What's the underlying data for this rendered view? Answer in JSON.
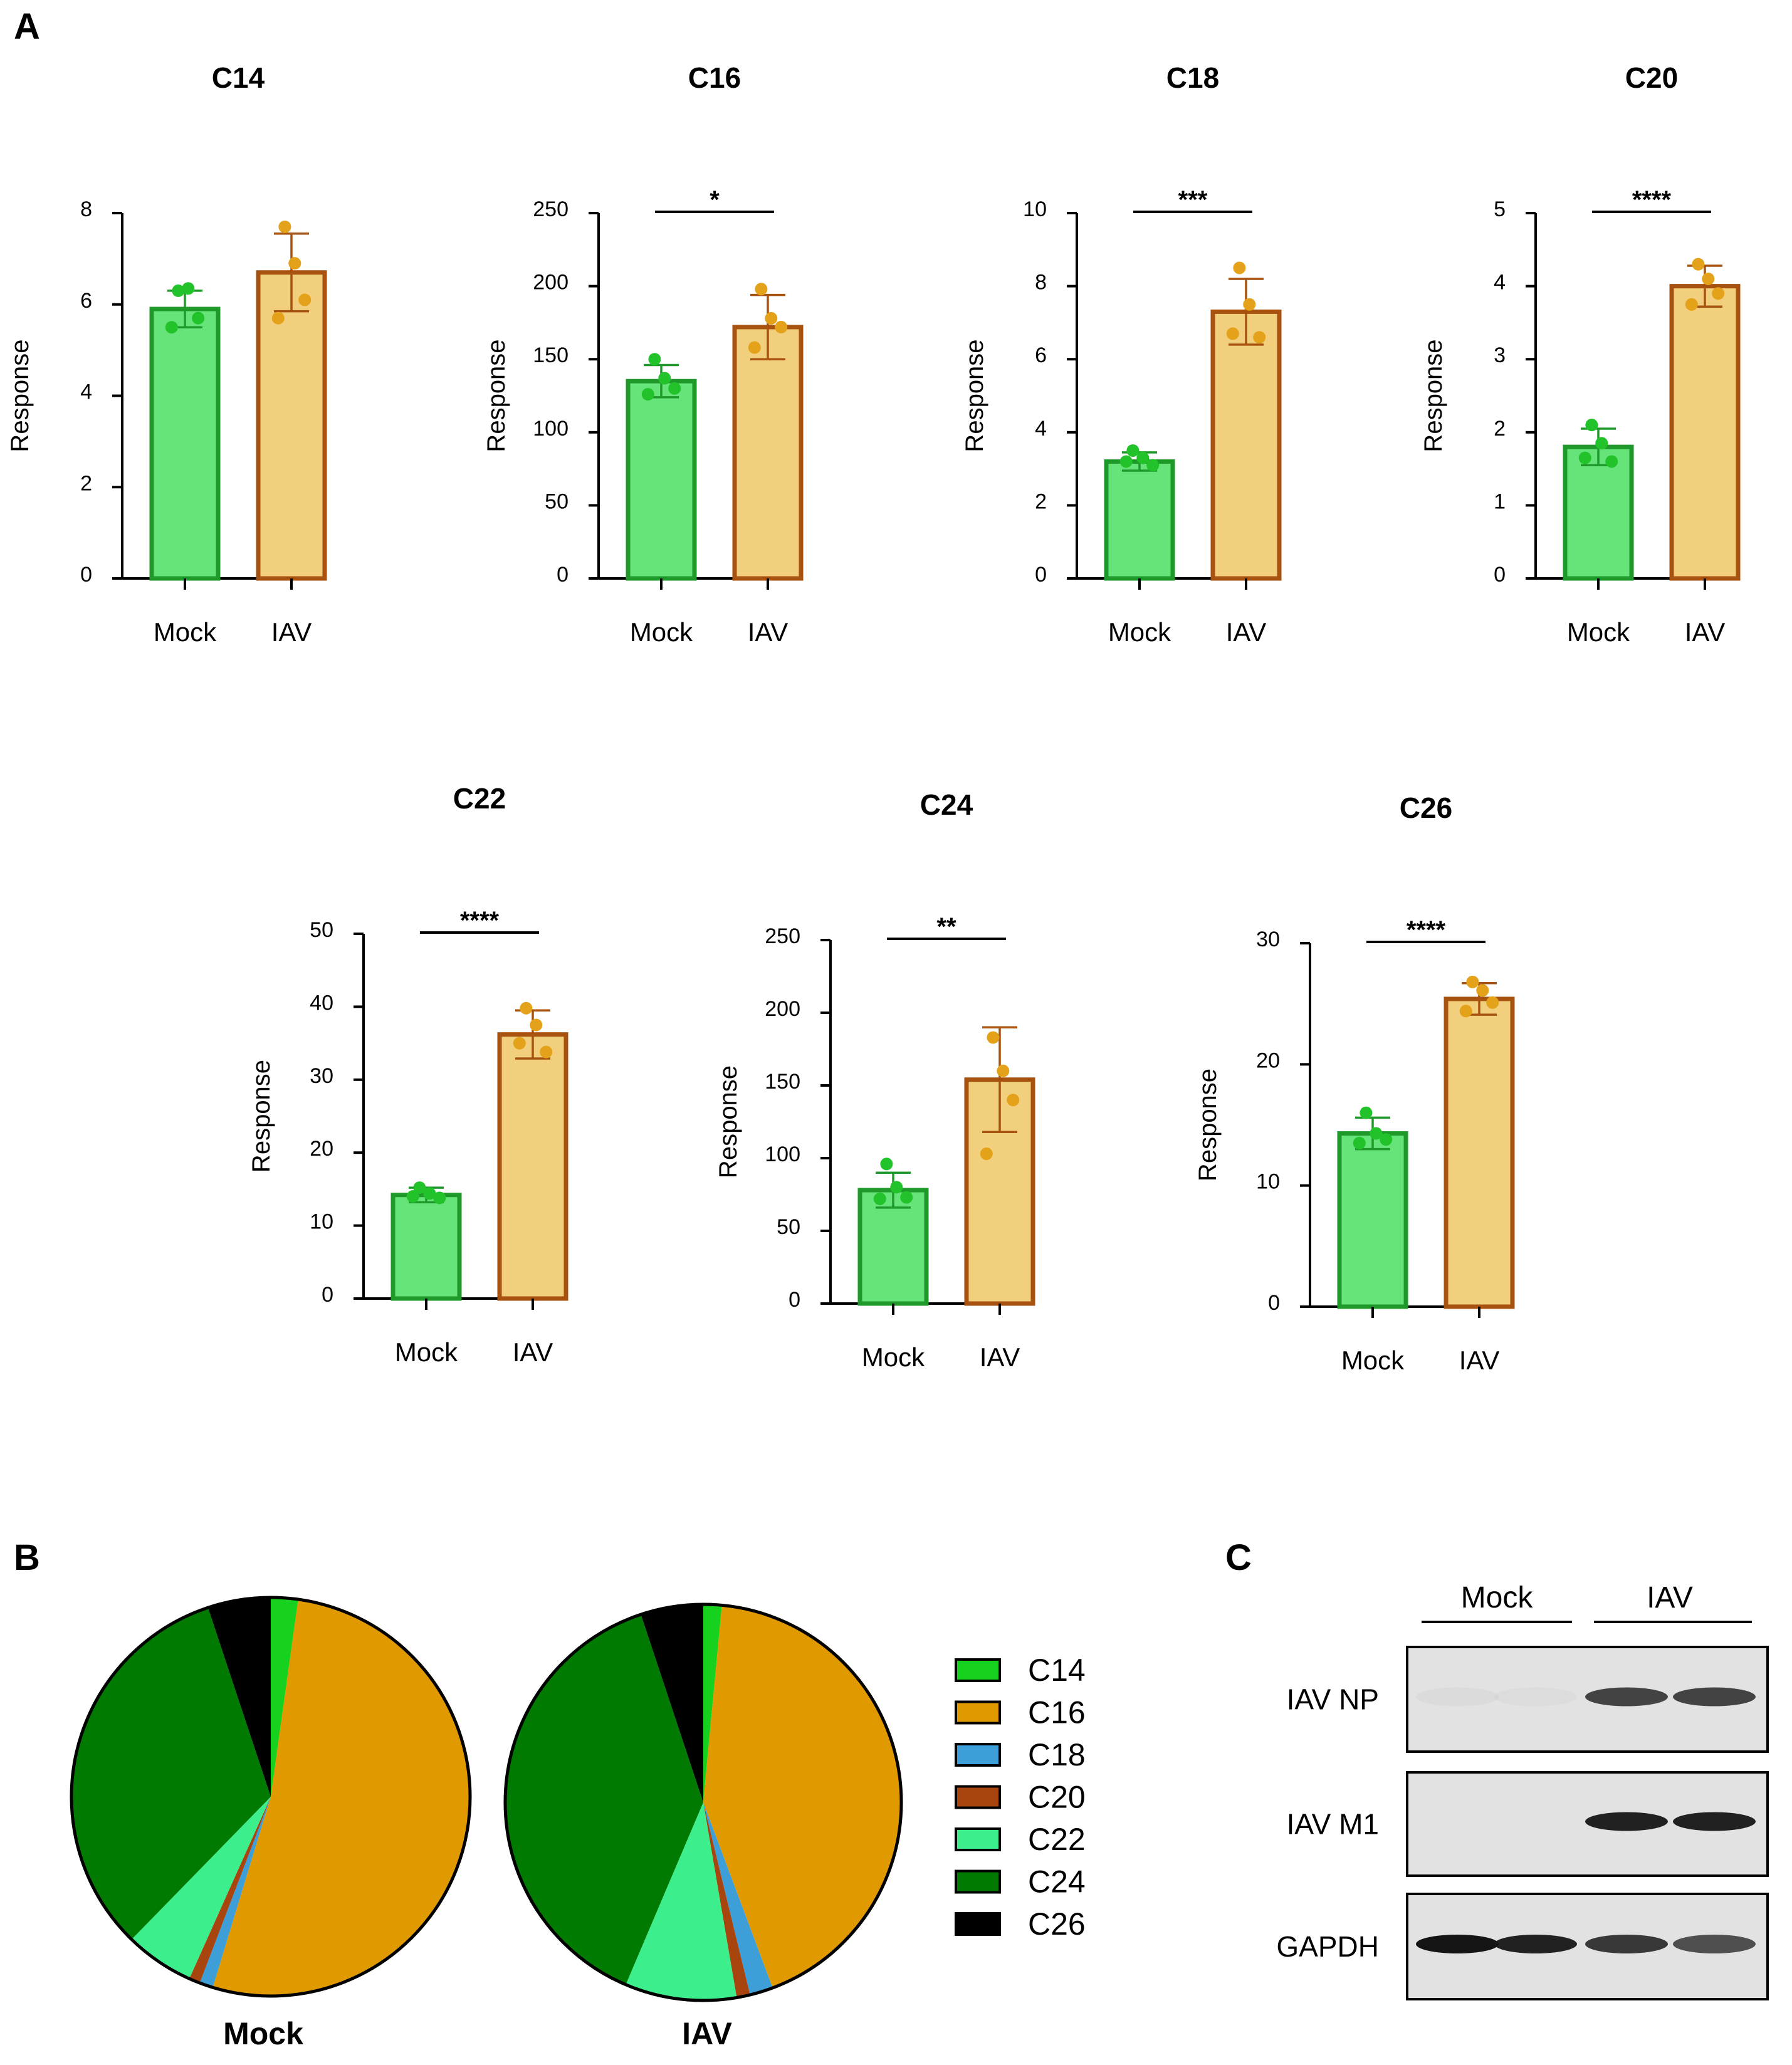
{
  "panel_labels": {
    "a": "A",
    "b": "B",
    "c": "C"
  },
  "colors": {
    "mock_fill": "#66e47a",
    "mock_stroke": "#1f9a2a",
    "mock_dot": "#22c22a",
    "iav_fill": "#f2cf7c",
    "iav_stroke": "#a8520f",
    "iav_dot": "#e3a21a",
    "axis": "#000000"
  },
  "chart_data": [
    {
      "type": "bar",
      "title": "C14",
      "ylabel": "Response",
      "categories": [
        "Mock",
        "IAV"
      ],
      "values": [
        5.9,
        6.7
      ],
      "errors": [
        0.4,
        0.85
      ],
      "ylim": [
        0,
        8
      ],
      "ytick_step": 2,
      "yticks": [
        "0",
        "2",
        "4",
        "6",
        "8"
      ],
      "points": [
        [
          6.3,
          6.35,
          5.7,
          5.5
        ],
        [
          7.7,
          6.9,
          6.1,
          5.7
        ]
      ],
      "significance": ""
    },
    {
      "type": "bar",
      "title": "C16",
      "ylabel": "Response",
      "categories": [
        "Mock",
        "IAV"
      ],
      "values": [
        135,
        172
      ],
      "errors": [
        11,
        22
      ],
      "ylim": [
        0,
        250
      ],
      "ytick_step": 50,
      "yticks": [
        "0",
        "50",
        "100",
        "150",
        "200",
        "250"
      ],
      "points": [
        [
          150,
          137,
          130,
          126
        ],
        [
          198,
          178,
          172,
          158
        ]
      ],
      "significance": "*"
    },
    {
      "type": "bar",
      "title": "C18",
      "ylabel": "Response",
      "categories": [
        "Mock",
        "IAV"
      ],
      "values": [
        3.2,
        7.3
      ],
      "errors": [
        0.25,
        0.9
      ],
      "ylim": [
        0,
        10
      ],
      "ytick_step": 2,
      "yticks": [
        "0",
        "2",
        "4",
        "6",
        "8",
        "10"
      ],
      "points": [
        [
          3.5,
          3.3,
          3.1,
          3.2
        ],
        [
          8.5,
          7.5,
          6.6,
          6.7
        ]
      ],
      "significance": "***"
    },
    {
      "type": "bar",
      "title": "C20",
      "ylabel": "Response",
      "categories": [
        "Mock",
        "IAV"
      ],
      "values": [
        1.8,
        4.0
      ],
      "errors": [
        0.25,
        0.28
      ],
      "ylim": [
        0,
        5
      ],
      "ytick_step": 1,
      "yticks": [
        "0",
        "1",
        "2",
        "3",
        "4",
        "5"
      ],
      "points": [
        [
          2.1,
          1.85,
          1.6,
          1.65
        ],
        [
          4.3,
          4.1,
          3.9,
          3.75
        ]
      ],
      "significance": "****"
    },
    {
      "type": "bar",
      "title": "C22",
      "ylabel": "Response",
      "categories": [
        "Mock",
        "IAV"
      ],
      "values": [
        14.2,
        36.2
      ],
      "errors": [
        1.0,
        3.3
      ],
      "ylim": [
        0,
        50
      ],
      "ytick_step": 10,
      "yticks": [
        "0",
        "10",
        "20",
        "30",
        "40",
        "50"
      ],
      "points": [
        [
          15.2,
          14.4,
          13.8,
          14.0
        ],
        [
          39.8,
          37.5,
          33.8,
          35.0
        ]
      ],
      "significance": "****"
    },
    {
      "type": "bar",
      "title": "C24",
      "ylabel": "Response",
      "categories": [
        "Mock",
        "IAV"
      ],
      "values": [
        78,
        154
      ],
      "errors": [
        12,
        36
      ],
      "ylim": [
        0,
        250
      ],
      "ytick_step": 50,
      "yticks": [
        "0",
        "50",
        "100",
        "150",
        "200",
        "250"
      ],
      "points": [
        [
          96,
          80,
          73,
          72
        ],
        [
          183,
          160,
          140,
          103
        ]
      ],
      "significance": "**"
    },
    {
      "type": "bar",
      "title": "C26",
      "ylabel": "Response",
      "categories": [
        "Mock",
        "IAV"
      ],
      "values": [
        14.3,
        25.4
      ],
      "errors": [
        1.3,
        1.3
      ],
      "ylim": [
        0,
        30
      ],
      "ytick_step": 10,
      "yticks": [
        "0",
        "10",
        "20",
        "30"
      ],
      "points": [
        [
          16.0,
          14.3,
          13.8,
          13.5
        ],
        [
          26.8,
          26.1,
          25.1,
          24.4
        ]
      ],
      "significance": "****"
    },
    {
      "type": "pie",
      "title": "Mock",
      "labels": [
        "C14",
        "C16",
        "C18",
        "C20",
        "C22",
        "C24",
        "C26"
      ],
      "values": [
        2.2,
        52.5,
        1.1,
        0.9,
        5.6,
        32.6,
        5.1
      ],
      "colors": [
        "#16d21e",
        "#e09a00",
        "#3d9ed8",
        "#a8440e",
        "#3cee8c",
        "#007a00",
        "#000000"
      ]
    },
    {
      "type": "pie",
      "title": "IAV",
      "labels": [
        "C14",
        "C16",
        "C18",
        "C20",
        "C22",
        "C24",
        "C26"
      ],
      "values": [
        1.5,
        42.8,
        1.9,
        1.1,
        9.1,
        38.5,
        5.1
      ],
      "colors": [
        "#16d21e",
        "#e09a00",
        "#3d9ed8",
        "#a8440e",
        "#3cee8c",
        "#007a00",
        "#000000"
      ]
    }
  ],
  "legend": {
    "items": [
      {
        "label": "C14",
        "color": "#16d21e"
      },
      {
        "label": "C16",
        "color": "#e09a00"
      },
      {
        "label": "C18",
        "color": "#3d9ed8"
      },
      {
        "label": "C20",
        "color": "#a8440e"
      },
      {
        "label": "C22",
        "color": "#3cee8c"
      },
      {
        "label": "C24",
        "color": "#007a00"
      },
      {
        "label": "C26",
        "color": "#000000"
      }
    ]
  },
  "blot": {
    "groups": [
      "Mock",
      "IAV"
    ],
    "rows": [
      {
        "label": "IAV NP",
        "lane_intensity": [
          0.04,
          0.03,
          0.8,
          0.8
        ]
      },
      {
        "label": "IAV M1",
        "lane_intensity": [
          0.0,
          0.0,
          0.95,
          0.95
        ]
      },
      {
        "label": "GAPDH",
        "lane_intensity": [
          1.0,
          0.95,
          0.85,
          0.75
        ]
      }
    ]
  }
}
